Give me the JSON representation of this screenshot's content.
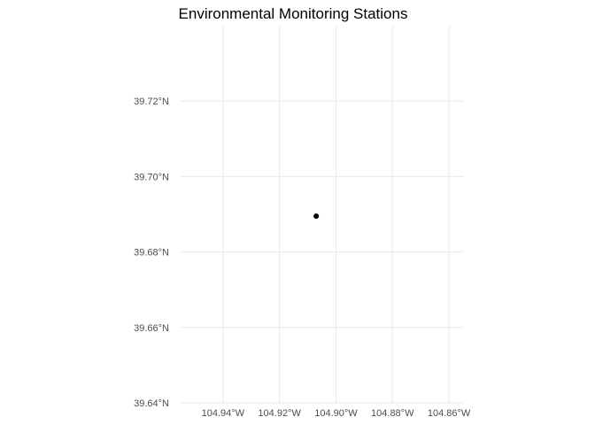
{
  "chart_data": {
    "type": "scatter",
    "title": "Environmental Monitoring Stations",
    "xlabel": "",
    "ylabel": "",
    "xlim": [
      -104.955,
      -104.855
    ],
    "ylim": [
      39.64,
      39.74
    ],
    "x_ticks": [
      {
        "value": -104.94,
        "label": "104.94°W"
      },
      {
        "value": -104.92,
        "label": "104.92°W"
      },
      {
        "value": -104.9,
        "label": "104.90°W"
      },
      {
        "value": -104.88,
        "label": "104.88°W"
      },
      {
        "value": -104.86,
        "label": "104.86°W"
      }
    ],
    "y_ticks": [
      {
        "value": 39.64,
        "label": "39.64°N"
      },
      {
        "value": 39.66,
        "label": "39.66°N"
      },
      {
        "value": 39.68,
        "label": "39.68°N"
      },
      {
        "value": 39.7,
        "label": "39.70°N"
      },
      {
        "value": 39.72,
        "label": "39.72°N"
      }
    ],
    "points": [
      {
        "x": -104.907,
        "y": 39.6895
      }
    ],
    "grid": true,
    "legend": "none",
    "colors": {
      "point": "#000000",
      "grid": "#ebebeb",
      "tick_text": "#4d4d4d"
    }
  }
}
